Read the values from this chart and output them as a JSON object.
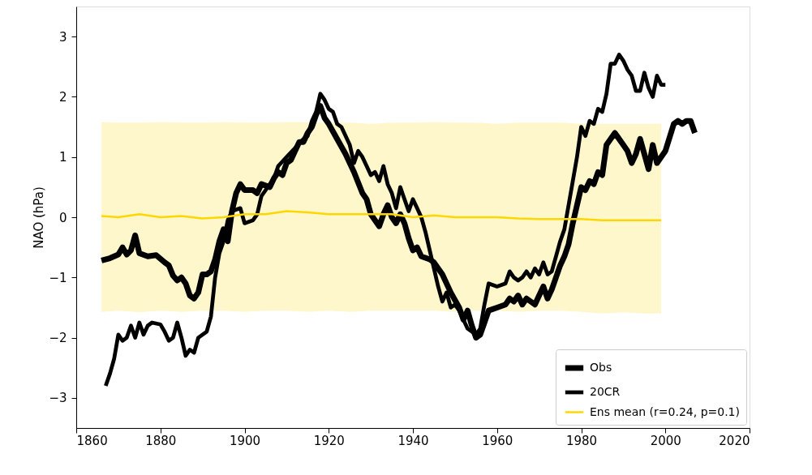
{
  "chart_data": {
    "type": "line",
    "ylabel": "NAO (hPa)",
    "xlim": [
      1860,
      2020
    ],
    "xticks": [
      1860,
      1880,
      1900,
      1920,
      1940,
      1960,
      1980,
      2000,
      2020
    ],
    "ylim": [
      -3.5,
      3.5
    ],
    "yticks": [
      -3,
      -2,
      -1,
      0,
      1,
      2,
      3
    ],
    "legend": "bottom right",
    "series": [
      {
        "name": "Obs",
        "color": "#000000",
        "x": [
          1866,
          1868,
          1870,
          1871,
          1872,
          1873,
          1874,
          1875,
          1877,
          1879,
          1881,
          1882,
          1883,
          1884,
          1885,
          1886,
          1887,
          1888,
          1889,
          1890,
          1891,
          1892,
          1893,
          1894,
          1895,
          1896,
          1897,
          1898,
          1899,
          1900,
          1902,
          1903,
          1904,
          1906,
          1907,
          1908,
          1909,
          1910,
          1911,
          1912,
          1913,
          1914,
          1915,
          1916,
          1917,
          1918,
          1919,
          1920,
          1922,
          1924,
          1926,
          1928,
          1929,
          1930,
          1932,
          1933,
          1934,
          1935,
          1936,
          1937,
          1938,
          1939,
          1940,
          1941,
          1942,
          1944,
          1945,
          1947,
          1949,
          1951,
          1952,
          1953,
          1954,
          1955,
          1956,
          1957,
          1958,
          1960,
          1962,
          1963,
          1964,
          1965,
          1966,
          1967,
          1968,
          1969,
          1970,
          1971,
          1972,
          1973,
          1974,
          1975,
          1976,
          1977,
          1978,
          1979,
          1980,
          1981,
          1982,
          1983,
          1984,
          1985,
          1986,
          1988,
          1990,
          1991,
          1992,
          1993,
          1994,
          1995,
          1996,
          1997,
          1998,
          1999,
          2000,
          2002,
          2003,
          2004,
          2005,
          2006,
          2007
        ],
        "values": [
          -0.72,
          -0.68,
          -0.62,
          -0.5,
          -0.62,
          -0.55,
          -0.3,
          -0.6,
          -0.65,
          -0.63,
          -0.75,
          -0.8,
          -0.97,
          -1.05,
          -1.0,
          -1.1,
          -1.3,
          -1.35,
          -1.25,
          -0.95,
          -0.95,
          -0.9,
          -0.7,
          -0.4,
          -0.2,
          -0.4,
          0.1,
          0.4,
          0.55,
          0.45,
          0.45,
          0.4,
          0.55,
          0.5,
          0.65,
          0.75,
          0.7,
          0.9,
          0.95,
          1.1,
          1.25,
          1.25,
          1.4,
          1.5,
          1.7,
          1.85,
          1.65,
          1.55,
          1.3,
          1.05,
          0.75,
          0.4,
          0.3,
          0.05,
          -0.15,
          0.05,
          0.2,
          0.0,
          -0.1,
          0.05,
          -0.1,
          -0.35,
          -0.55,
          -0.5,
          -0.65,
          -0.7,
          -0.75,
          -0.95,
          -1.25,
          -1.5,
          -1.7,
          -1.55,
          -1.8,
          -2.0,
          -1.95,
          -1.75,
          -1.55,
          -1.5,
          -1.45,
          -1.35,
          -1.4,
          -1.3,
          -1.45,
          -1.35,
          -1.4,
          -1.45,
          -1.3,
          -1.15,
          -1.35,
          -1.2,
          -1.0,
          -0.8,
          -0.65,
          -0.45,
          -0.1,
          0.2,
          0.5,
          0.45,
          0.6,
          0.55,
          0.75,
          0.7,
          1.2,
          1.4,
          1.2,
          1.1,
          0.9,
          1.05,
          1.3,
          1.05,
          0.8,
          1.2,
          0.9,
          1.0,
          1.1,
          1.55,
          1.6,
          1.55,
          1.6,
          1.6,
          1.4
        ]
      },
      {
        "name": "20CR",
        "color": "#000000",
        "x": [
          1867,
          1868,
          1869,
          1870,
          1871,
          1872,
          1873,
          1874,
          1875,
          1876,
          1877,
          1878,
          1880,
          1881,
          1882,
          1883,
          1884,
          1885,
          1886,
          1887,
          1888,
          1889,
          1890,
          1891,
          1892,
          1893,
          1894,
          1895,
          1896,
          1897,
          1899,
          1900,
          1902,
          1903,
          1904,
          1906,
          1907,
          1908,
          1910,
          1912,
          1914,
          1915,
          1916,
          1917,
          1918,
          1919,
          1920,
          1921,
          1922,
          1923,
          1925,
          1926,
          1927,
          1928,
          1929,
          1930,
          1931,
          1932,
          1933,
          1934,
          1935,
          1936,
          1937,
          1938,
          1939,
          1940,
          1941,
          1942,
          1943,
          1944,
          1945,
          1946,
          1947,
          1948,
          1949,
          1950,
          1951,
          1952,
          1953,
          1954,
          1955,
          1956,
          1957,
          1958,
          1960,
          1962,
          1963,
          1964,
          1965,
          1966,
          1967,
          1968,
          1969,
          1970,
          1971,
          1972,
          1973,
          1974,
          1975,
          1976,
          1977,
          1978,
          1979,
          1980,
          1981,
          1982,
          1983,
          1984,
          1985,
          1986,
          1987,
          1988,
          1989,
          1990,
          1991,
          1992,
          1993,
          1994,
          1995,
          1996,
          1997,
          1998,
          1999,
          2000
        ],
        "values": [
          -2.8,
          -2.6,
          -2.35,
          -1.95,
          -2.05,
          -2.0,
          -1.8,
          -2.0,
          -1.75,
          -1.95,
          -1.8,
          -1.75,
          -1.78,
          -1.9,
          -2.05,
          -2.0,
          -1.75,
          -2.0,
          -2.3,
          -2.2,
          -2.25,
          -2.0,
          -1.95,
          -1.9,
          -1.65,
          -1.0,
          -0.6,
          -0.4,
          -0.05,
          0.1,
          0.15,
          -0.1,
          -0.05,
          0.05,
          0.35,
          0.55,
          0.65,
          0.85,
          1.0,
          1.15,
          1.3,
          1.35,
          1.6,
          1.75,
          2.05,
          1.95,
          1.8,
          1.75,
          1.55,
          1.5,
          1.2,
          0.9,
          1.1,
          1.0,
          0.85,
          0.7,
          0.75,
          0.6,
          0.85,
          0.55,
          0.4,
          0.15,
          0.5,
          0.3,
          0.1,
          0.3,
          0.15,
          0.0,
          -0.25,
          -0.55,
          -0.85,
          -1.15,
          -1.4,
          -1.25,
          -1.5,
          -1.45,
          -1.55,
          -1.7,
          -1.85,
          -1.9,
          -1.95,
          -1.85,
          -1.45,
          -1.1,
          -1.15,
          -1.1,
          -0.9,
          -1.0,
          -1.05,
          -1.0,
          -0.9,
          -1.0,
          -0.85,
          -0.95,
          -0.75,
          -0.95,
          -0.9,
          -0.65,
          -0.4,
          -0.2,
          0.2,
          0.6,
          1.0,
          1.5,
          1.35,
          1.6,
          1.55,
          1.8,
          1.75,
          2.05,
          2.55,
          2.55,
          2.7,
          2.6,
          2.45,
          2.35,
          2.1,
          2.1,
          2.4,
          2.15,
          2.0,
          2.35,
          2.2,
          2.2
        ]
      },
      {
        "name": "Ens mean (r=0.24, p=0.1)",
        "color": "#ffd700",
        "x": [
          1866,
          1870,
          1875,
          1880,
          1885,
          1890,
          1895,
          1900,
          1905,
          1910,
          1915,
          1920,
          1925,
          1930,
          1935,
          1940,
          1945,
          1950,
          1955,
          1960,
          1965,
          1970,
          1975,
          1980,
          1985,
          1990,
          1995,
          1999
        ],
        "values": [
          0.02,
          0.0,
          0.05,
          0.0,
          0.02,
          -0.02,
          0.0,
          0.05,
          0.05,
          0.1,
          0.08,
          0.05,
          0.05,
          0.05,
          0.05,
          0.0,
          0.03,
          0.0,
          0.0,
          0.0,
          -0.02,
          -0.03,
          -0.03,
          -0.03,
          -0.05,
          -0.05,
          -0.05,
          -0.05
        ],
        "lower": [
          -1.57,
          -1.55,
          -1.58,
          -1.55,
          -1.57,
          -1.55,
          -1.55,
          -1.57,
          -1.55,
          -1.55,
          -1.57,
          -1.55,
          -1.57,
          -1.55,
          -1.55,
          -1.55,
          -1.55,
          -1.57,
          -1.55,
          -1.55,
          -1.57,
          -1.55,
          -1.55,
          -1.57,
          -1.6,
          -1.58,
          -1.6,
          -1.6
        ],
        "upper": [
          1.58,
          1.57,
          1.57,
          1.58,
          1.57,
          1.57,
          1.58,
          1.57,
          1.57,
          1.58,
          1.58,
          1.57,
          1.57,
          1.55,
          1.57,
          1.57,
          1.58,
          1.57,
          1.57,
          1.55,
          1.57,
          1.57,
          1.57,
          1.55,
          1.55,
          1.55,
          1.55,
          1.55
        ]
      }
    ]
  }
}
